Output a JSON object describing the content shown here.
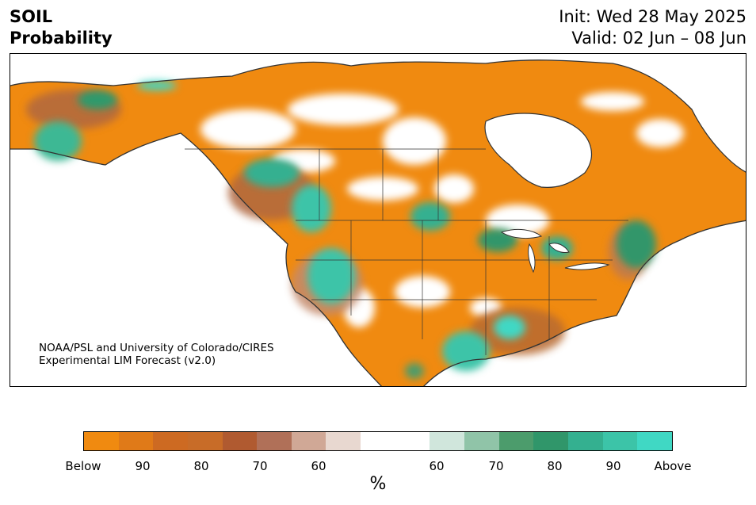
{
  "header": {
    "title_line1": "SOIL",
    "title_line2": "Probability",
    "init_line": "Init: Wed 28 May 2025",
    "valid_line": "Valid: 02 Jun – 08 Jun"
  },
  "credit": {
    "line1": "NOAA/PSL and University of Colorado/CIRES",
    "line2": "Experimental LIM Forecast (v2.0)"
  },
  "colorbar": {
    "colors": [
      "#f08a10",
      "#e07a18",
      "#cd6a22",
      "#c86c28",
      "#b05a30",
      "#b07058",
      "#d0a896",
      "#e8d8d0",
      "#ffffff",
      "#ffffff",
      "#d0e6dc",
      "#90c4a8",
      "#4c9c6c",
      "#30966a",
      "#34b090",
      "#3cc4a8",
      "#40d8c4"
    ],
    "tick_labels": [
      "Below",
      "90",
      "80",
      "70",
      "60",
      "60",
      "70",
      "80",
      "90",
      "Above"
    ],
    "unit_label": "%"
  },
  "map": {
    "region": "North America",
    "below_color": "#f08a10",
    "above_color": "#3cc4a8",
    "coast_color": "#333333"
  }
}
